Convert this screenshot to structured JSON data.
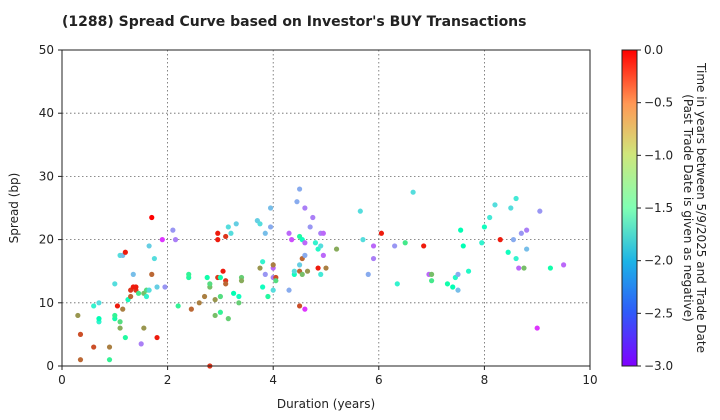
{
  "chart_data": {
    "type": "scatter",
    "title": "(1288)   Spread Curve based on Investor's BUY Transactions",
    "xlabel": "Duration (years)",
    "ylabel": "Spread (bp)",
    "xlim": [
      0,
      10
    ],
    "ylim": [
      0,
      50
    ],
    "xticks": [
      "0",
      "2",
      "4",
      "6",
      "8",
      "10"
    ],
    "yticks": [
      "0",
      "10",
      "20",
      "30",
      "40",
      "50"
    ],
    "grid": true,
    "colorbar": {
      "label_line1": "Time in years between 5/9/2025 and Trade Date",
      "label_line2": "(Past Trade Date is given as negative)",
      "range": [
        -3.0,
        0.0
      ],
      "ticks": [
        "0.0",
        "−0.5",
        "−1.0",
        "−1.5",
        "−2.0",
        "−2.5",
        "−3.0"
      ],
      "colormap": "rainbow"
    },
    "points": [
      [
        0.3,
        8,
        -0.6
      ],
      [
        0.35,
        5,
        -0.3
      ],
      [
        0.35,
        1,
        -0.4
      ],
      [
        0.6,
        9.5,
        -1.8
      ],
      [
        0.6,
        3,
        -0.3
      ],
      [
        0.7,
        10,
        -2.0
      ],
      [
        0.7,
        7,
        -1.8
      ],
      [
        0.7,
        7.5,
        -1.5
      ],
      [
        0.9,
        1,
        -1.2
      ],
      [
        0.9,
        3,
        -0.5
      ],
      [
        1.0,
        7.5,
        -1.4
      ],
      [
        1.0,
        8,
        -1.2
      ],
      [
        1.0,
        13,
        -2.0
      ],
      [
        1.05,
        9.5,
        -0.1
      ],
      [
        1.1,
        6,
        -0.7
      ],
      [
        1.1,
        7,
        -1.0
      ],
      [
        1.1,
        17.5,
        -2.0
      ],
      [
        1.15,
        17.5,
        -2.2
      ],
      [
        1.15,
        9,
        -0.5
      ],
      [
        1.2,
        18,
        -0.1
      ],
      [
        1.2,
        4.5,
        -1.3
      ],
      [
        1.25,
        10.5,
        -1.6
      ],
      [
        1.3,
        12,
        -0.2
      ],
      [
        1.3,
        11,
        -0.4
      ],
      [
        1.35,
        12.5,
        -0.1
      ],
      [
        1.35,
        14.5,
        -2.2
      ],
      [
        1.4,
        12,
        -0.2
      ],
      [
        1.4,
        12.5,
        -0.1
      ],
      [
        1.45,
        11.5,
        -1.1
      ],
      [
        1.5,
        3.5,
        -2.5
      ],
      [
        1.55,
        6,
        -0.6
      ],
      [
        1.55,
        11.5,
        -0.8
      ],
      [
        1.6,
        12,
        -1.0
      ],
      [
        1.6,
        11,
        -1.8
      ],
      [
        1.65,
        19,
        -2.1
      ],
      [
        1.65,
        12,
        -2.0
      ],
      [
        1.7,
        23.5,
        0.0
      ],
      [
        1.7,
        14.5,
        -0.4
      ],
      [
        1.75,
        17,
        -2.0
      ],
      [
        1.8,
        4.5,
        -0.1
      ],
      [
        1.8,
        12.5,
        -2.1
      ],
      [
        1.9,
        20,
        -2.8
      ],
      [
        1.95,
        12.5,
        -2.4
      ],
      [
        2.1,
        21.5,
        -2.4
      ],
      [
        2.15,
        20,
        -2.5
      ],
      [
        2.2,
        9.5,
        -1.2
      ],
      [
        2.4,
        14,
        -1.3
      ],
      [
        2.4,
        14.5,
        -1.2
      ],
      [
        2.45,
        9,
        -0.4
      ],
      [
        2.6,
        10,
        -0.5
      ],
      [
        2.7,
        11,
        -0.5
      ],
      [
        2.75,
        14,
        -1.4
      ],
      [
        2.8,
        12.5,
        -0.8
      ],
      [
        2.8,
        13,
        -1.0
      ],
      [
        2.8,
        0,
        -0.2
      ],
      [
        2.9,
        8,
        -0.8
      ],
      [
        2.9,
        10.5,
        -0.6
      ],
      [
        2.95,
        14,
        -0.2
      ],
      [
        2.95,
        20,
        -0.1
      ],
      [
        2.95,
        21,
        -0.1
      ],
      [
        3.0,
        14,
        -1.4
      ],
      [
        3.0,
        11,
        -1.0
      ],
      [
        3.0,
        8.5,
        -1.2
      ],
      [
        3.05,
        15,
        -0.1
      ],
      [
        3.1,
        13.5,
        -0.2
      ],
      [
        3.1,
        13,
        -0.4
      ],
      [
        3.1,
        20.5,
        -0.2
      ],
      [
        3.15,
        22,
        -2.0
      ],
      [
        3.15,
        7.5,
        -0.9
      ],
      [
        3.2,
        21,
        -2.0
      ],
      [
        3.25,
        11.5,
        -1.5
      ],
      [
        3.3,
        22.5,
        -2.1
      ],
      [
        3.35,
        11,
        -1.6
      ],
      [
        3.35,
        10,
        -0.9
      ],
      [
        3.4,
        14,
        -0.9
      ],
      [
        3.4,
        13.5,
        -0.7
      ],
      [
        3.7,
        23,
        -2.1
      ],
      [
        3.75,
        22.5,
        -2.0
      ],
      [
        3.75,
        15.5,
        -0.6
      ],
      [
        3.8,
        16.5,
        -1.8
      ],
      [
        3.8,
        12.5,
        -1.6
      ],
      [
        3.85,
        14.5,
        -2.4
      ],
      [
        3.85,
        21,
        -2.2
      ],
      [
        3.9,
        11,
        -1.3
      ],
      [
        3.95,
        25,
        -2.2
      ],
      [
        3.95,
        22,
        -2.3
      ],
      [
        4.0,
        12,
        -2.0
      ],
      [
        4.0,
        14,
        -2.5
      ],
      [
        4.0,
        15.5,
        -2.6
      ],
      [
        4.0,
        16,
        -0.5
      ],
      [
        4.05,
        14,
        -0.3
      ],
      [
        4.05,
        13.5,
        -1.0
      ],
      [
        4.3,
        12,
        -2.3
      ],
      [
        4.3,
        21,
        -2.6
      ],
      [
        4.35,
        20,
        -2.7
      ],
      [
        4.4,
        14.5,
        -1.6
      ],
      [
        4.4,
        15,
        -2.0
      ],
      [
        4.45,
        26,
        -2.3
      ],
      [
        4.5,
        28,
        -2.3
      ],
      [
        4.5,
        20.5,
        -1.3
      ],
      [
        4.5,
        16,
        -2.1
      ],
      [
        4.5,
        15,
        -0.4
      ],
      [
        4.5,
        9.5,
        -0.3
      ],
      [
        4.55,
        17,
        -0.4
      ],
      [
        4.55,
        14.5,
        -0.8
      ],
      [
        4.55,
        20,
        -1.6
      ],
      [
        4.6,
        25,
        -2.5
      ],
      [
        4.6,
        17.5,
        -2.3
      ],
      [
        4.6,
        19.5,
        -2.6
      ],
      [
        4.6,
        9,
        -2.8
      ],
      [
        4.65,
        15,
        -0.6
      ],
      [
        4.7,
        22,
        -2.4
      ],
      [
        4.75,
        23.5,
        -2.5
      ],
      [
        4.8,
        19.5,
        -1.8
      ],
      [
        4.85,
        18.5,
        -1.7
      ],
      [
        4.85,
        15.5,
        -0.1
      ],
      [
        4.9,
        14.5,
        -1.9
      ],
      [
        4.9,
        19,
        -2.0
      ],
      [
        4.9,
        21,
        -2.5
      ],
      [
        4.95,
        21,
        -2.6
      ],
      [
        4.95,
        17.5,
        -2.6
      ],
      [
        5.0,
        15.5,
        -0.5
      ],
      [
        5.2,
        18.5,
        -0.7
      ],
      [
        5.65,
        24.5,
        -2.0
      ],
      [
        5.7,
        20,
        -2.0
      ],
      [
        5.8,
        14.5,
        -2.3
      ],
      [
        5.9,
        19,
        -2.6
      ],
      [
        5.9,
        17,
        -2.5
      ],
      [
        6.05,
        21,
        -0.1
      ],
      [
        6.3,
        19,
        -2.4
      ],
      [
        6.35,
        13,
        -1.8
      ],
      [
        6.5,
        19.5,
        -1.1
      ],
      [
        6.65,
        27.5,
        -2.0
      ],
      [
        6.85,
        19,
        -0.1
      ],
      [
        6.95,
        14.5,
        -2.6
      ],
      [
        7.0,
        14.5,
        -0.8
      ],
      [
        7.0,
        13.5,
        -1.1
      ],
      [
        7.3,
        13,
        -1.4
      ],
      [
        7.4,
        12.5,
        -1.5
      ],
      [
        7.45,
        14,
        -1.7
      ],
      [
        7.5,
        12,
        -2.2
      ],
      [
        7.5,
        14.5,
        -2.3
      ],
      [
        7.55,
        21.5,
        -1.5
      ],
      [
        7.6,
        19,
        -1.5
      ],
      [
        7.7,
        15,
        -1.7
      ],
      [
        7.95,
        19.5,
        -1.8
      ],
      [
        8.0,
        22,
        -1.6
      ],
      [
        8.1,
        23.5,
        -1.9
      ],
      [
        8.2,
        25.5,
        -2.0
      ],
      [
        8.3,
        20,
        -0.1
      ],
      [
        8.45,
        18,
        -1.6
      ],
      [
        8.5,
        25,
        -2.0
      ],
      [
        8.55,
        20,
        -2.3
      ],
      [
        8.6,
        26.5,
        -1.9
      ],
      [
        8.6,
        17,
        -1.8
      ],
      [
        8.65,
        15.5,
        -2.6
      ],
      [
        8.7,
        21,
        -2.4
      ],
      [
        8.75,
        15.5,
        -0.8
      ],
      [
        8.8,
        18.5,
        -2.2
      ],
      [
        8.8,
        21.5,
        -2.5
      ],
      [
        9.0,
        6,
        -2.8
      ],
      [
        9.05,
        24.5,
        -2.4
      ],
      [
        9.25,
        15.5,
        -1.4
      ],
      [
        9.5,
        16,
        -2.6
      ]
    ]
  }
}
